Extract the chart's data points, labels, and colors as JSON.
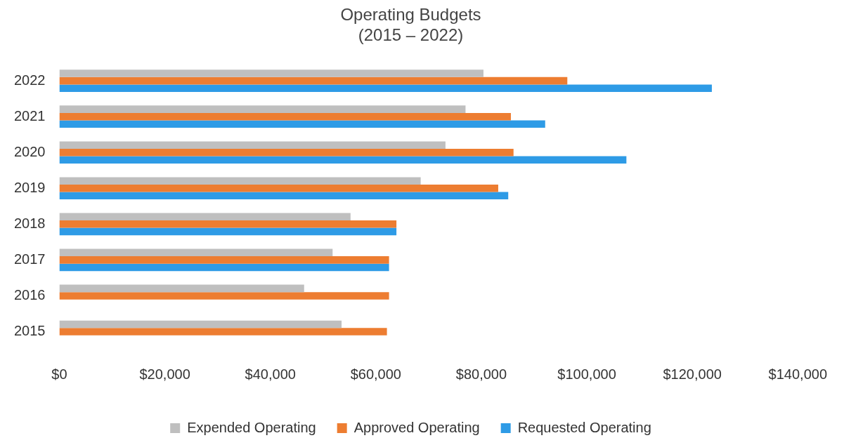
{
  "chart_data": {
    "type": "bar",
    "orientation": "horizontal",
    "title": "Operating Budgets\n(2015 – 2022)",
    "categories": [
      "2022",
      "2021",
      "2020",
      "2019",
      "2018",
      "2017",
      "2016",
      "2015"
    ],
    "series": [
      {
        "name": "Expended Operating",
        "color": "#bfbfbf",
        "values": [
          80400,
          77000,
          73200,
          68500,
          55200,
          51800,
          46400,
          53500
        ]
      },
      {
        "name": "Approved Operating",
        "color": "#ed7d31",
        "values": [
          96300,
          85600,
          86100,
          83200,
          63900,
          62500,
          62500,
          62100
        ]
      },
      {
        "name": "Requested Operating",
        "color": "#2e9be6",
        "values": [
          123700,
          92100,
          107500,
          85100,
          63900,
          62500,
          null,
          null
        ]
      }
    ],
    "xlim": [
      0,
      140000
    ],
    "xticks": [
      {
        "value": 0,
        "label": "$0"
      },
      {
        "value": 20000,
        "label": "$20,000"
      },
      {
        "value": 40000,
        "label": "$40,000"
      },
      {
        "value": 60000,
        "label": "$60,000"
      },
      {
        "value": 80000,
        "label": "$80,000"
      },
      {
        "value": 100000,
        "label": "$100,000"
      },
      {
        "value": 120000,
        "label": "$120,000"
      },
      {
        "value": 140000,
        "label": "$140,000"
      }
    ],
    "grid": false,
    "legend": "bottom"
  }
}
